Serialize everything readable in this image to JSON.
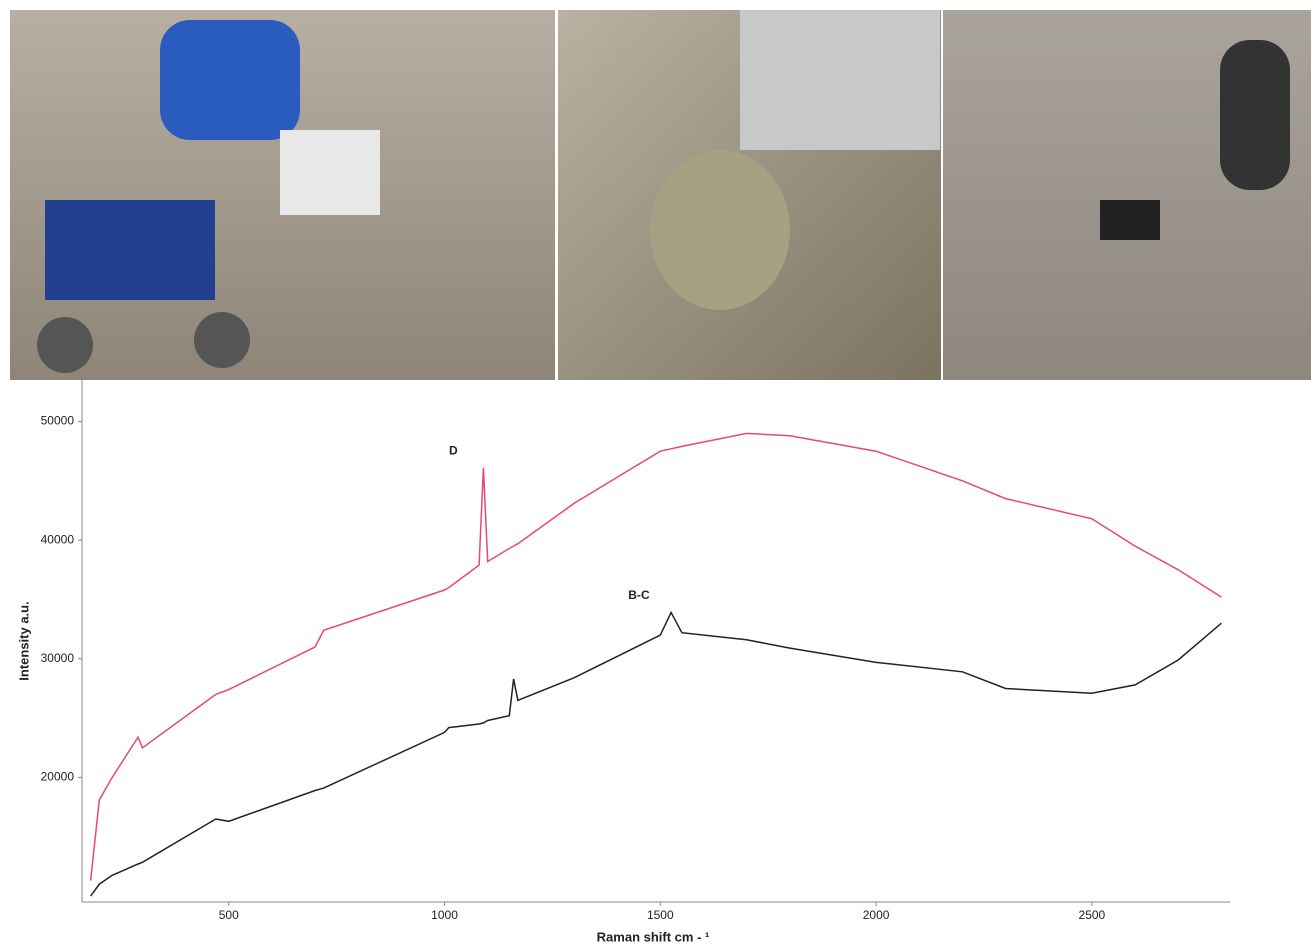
{
  "chart_data": {
    "type": "line",
    "x_label": "Raman shift cm - ¹",
    "y_label": "Intensity a.u.",
    "annotations": [
      {
        "text": "D",
        "x": 1090,
        "y": 47500
      },
      {
        "text": "B-C",
        "x": 1520,
        "y": 35300
      }
    ],
    "x": [
      180,
      200,
      230,
      290,
      300,
      470,
      500,
      700,
      720,
      1000,
      1010,
      1080,
      1090,
      1100,
      1150,
      1160,
      1170,
      1300,
      1500,
      1525,
      1550,
      1700,
      1800,
      2000,
      2200,
      2300,
      2500,
      2600,
      2700,
      2800
    ],
    "series": [
      {
        "name": "D",
        "color": "#e8457f",
        "values": [
          11300,
          18100,
          20000,
          23400,
          22500,
          27000,
          27400,
          31000,
          32400,
          35800,
          36000,
          37900,
          46100,
          38200,
          39300,
          39500,
          39700,
          43100,
          47500,
          47700,
          47900,
          49000,
          48800,
          47500,
          45000,
          43500,
          41800,
          39500,
          37500,
          35200
        ]
      },
      {
        "name": "B-C",
        "color": "#222222",
        "values": [
          10000,
          11000,
          11750,
          12700,
          12850,
          16500,
          16300,
          18900,
          19100,
          23800,
          24200,
          24500,
          24600,
          24800,
          25200,
          28300,
          26500,
          28400,
          32000,
          33900,
          32200,
          31600,
          30900,
          29700,
          28900,
          27500,
          27100,
          27800,
          29900,
          33000
        ]
      }
    ],
    "xlim": [
      160,
      2820
    ],
    "xticks": [
      500,
      1000,
      1500,
      2000,
      2500
    ],
    "ylim": [
      9500,
      53500
    ],
    "yticks": [
      20000,
      30000,
      40000,
      50000
    ],
    "grid": false
  }
}
